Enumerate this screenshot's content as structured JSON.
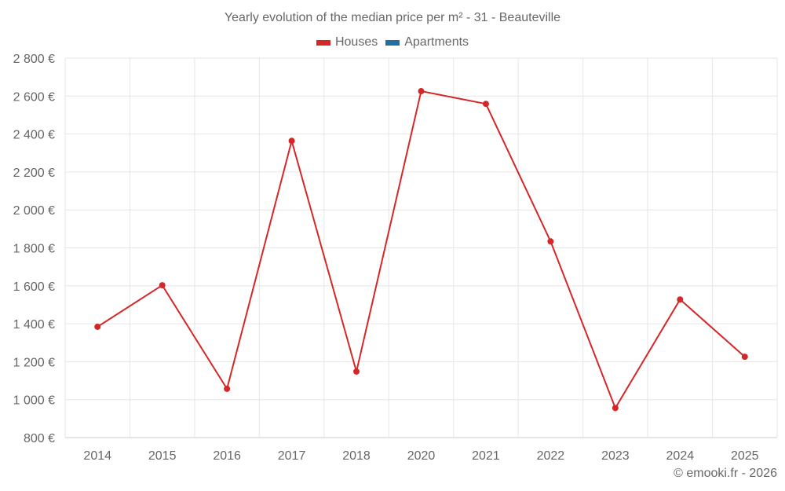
{
  "title": "Yearly evolution of the median price per m² - 31 - Beauteville",
  "legend": [
    {
      "label": "Houses",
      "color": "#d62728"
    },
    {
      "label": "Apartments",
      "color": "#1f6fa0"
    }
  ],
  "credit": "© emooki.fr - 2026",
  "chart_data": {
    "type": "line",
    "title": "Yearly evolution of the median price per m² - 31 - Beauteville",
    "xlabel": "",
    "ylabel": "",
    "categories": [
      "2014",
      "2015",
      "2016",
      "2017",
      "2018",
      "2020",
      "2021",
      "2022",
      "2023",
      "2024",
      "2025"
    ],
    "series": [
      {
        "name": "Houses",
        "color": "#d62728",
        "values": [
          1384,
          1603,
          1057,
          2364,
          1148,
          2626,
          2559,
          1834,
          956,
          1528,
          1226
        ]
      },
      {
        "name": "Apartments",
        "color": "#1f6fa0",
        "values": []
      }
    ],
    "ylim": [
      800,
      2800
    ],
    "yticks": [
      "800 €",
      "1 000 €",
      "1 200 €",
      "1 400 €",
      "1 600 €",
      "1 800 €",
      "2 000 €",
      "2 200 €",
      "2 400 €",
      "2 600 €",
      "2 800 €"
    ],
    "grid": true,
    "legend_position": "top"
  }
}
